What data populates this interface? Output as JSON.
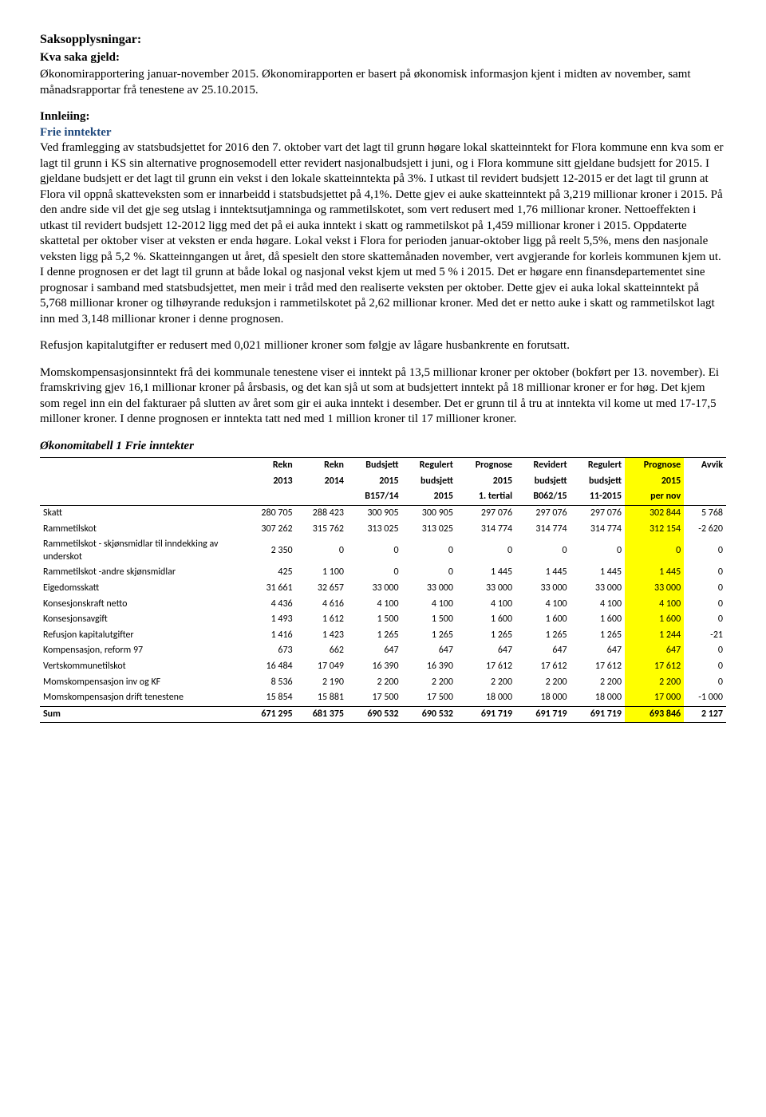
{
  "header": {
    "saksopplysningar": "Saksopplysningar:",
    "kva_saka": "Kva saka gjeld:",
    "intro": "Økonomirapportering januar-november 2015. Økonomirapporten er basert på økonomisk informasjon kjent i midten av november, samt månadsrapportar frå tenestene av 25.10.2015."
  },
  "innleiing": {
    "label": "Innleiing:",
    "frie_label": "Frie inntekter",
    "para1": "Ved framlegging av statsbudsjettet for 2016 den 7. oktober vart det lagt til grunn høgare lokal skatteinntekt for Flora kommune enn kva som er lagt til grunn i KS sin alternative prognosemodell etter revidert nasjonalbudsjett i juni, og i Flora kommune sitt gjeldane budsjett for 2015. I gjeldane budsjett er det lagt til grunn ein vekst i den lokale skatteinntekta på 3%. I utkast til revidert budsjett 12-2015 er det lagt til grunn at Flora vil oppnå skatteveksten som er innarbeidd i statsbudsjettet på 4,1%. Dette gjev ei auke skatteinntekt på 3,219 millionar kroner i 2015. På den andre side vil det gje seg utslag i inntektsutjamninga og rammetilskotet, som vert redusert med 1,76 millionar kroner. Nettoeffekten i utkast til revidert budsjett 12-2012 ligg med det på ei auka inntekt i skatt og rammetilskot på 1,459 millionar kroner i 2015. Oppdaterte skattetal per oktober viser at veksten er enda høgare. Lokal vekst i Flora for perioden januar-oktober ligg på reelt 5,5%, mens den nasjonale veksten ligg på 5,2 %. Skatteinngangen ut året, då spesielt den store skattemånaden november, vert avgjerande for korleis kommunen kjem ut. I denne prognosen er det lagt til grunn at både lokal og nasjonal vekst kjem ut med 5 % i 2015. Det er høgare enn finansdepartementet sine prognosar i samband med statsbudsjettet, men meir i tråd med den realiserte veksten per oktober. Dette gjev ei auka lokal skatteinntekt på 5,768 millionar kroner og tilhøyrande reduksjon i rammetilskotet på 2,62 millionar kroner. Med det er netto auke i skatt og rammetilskot lagt inn med 3,148 millionar kroner i denne prognosen.",
    "para2": "Refusjon kapitalutgifter er redusert med 0,021 millioner kroner som følgje av lågare husbankrente en forutsatt.",
    "para3": "Momskompensasjonsinntekt frå dei kommunale tenestene viser ei inntekt på 13,5 millionar kroner per oktober (bokført per 13. november). Ei framskriving gjev 16,1 millionar kroner på årsbasis, og det kan sjå ut som at budsjettert inntekt på 18 millionar kroner er for høg. Det kjem som regel inn ein del fakturaer på slutten av året som gir ei auka inntekt i desember. Det er grunn til å tru at inntekta vil kome ut med 17-17,5 milloner kroner. I denne prognosen er inntekta tatt ned med 1 million kroner til 17 millioner kroner."
  },
  "table": {
    "title": "Økonomitabell 1 Frie inntekter",
    "head_r1": [
      "",
      "Rekn",
      "Rekn",
      "Budsjett",
      "Regulert",
      "Prognose",
      "Revidert",
      "Regulert",
      "Prognose",
      "Avvik"
    ],
    "head_r2": [
      "",
      "2013",
      "2014",
      "2015",
      "budsjett",
      "2015",
      "budsjett",
      "budsjett",
      "2015",
      ""
    ],
    "head_r3": [
      "",
      "",
      "",
      "B157/14",
      "2015",
      "1. tertial",
      "B062/15",
      "11-2015",
      "per nov",
      ""
    ],
    "rows": [
      {
        "label": "Skatt",
        "v": [
          "280 705",
          "288 423",
          "300 905",
          "300 905",
          "297 076",
          "297 076",
          "297 076",
          "302 844",
          "5 768"
        ]
      },
      {
        "label": "Rammetilskot",
        "v": [
          "307 262",
          "315 762",
          "313 025",
          "313 025",
          "314 774",
          "314 774",
          "314 774",
          "312 154",
          "-2 620"
        ]
      },
      {
        "label": "Rammetilskot - skjønsmidlar til inndekking av underskot",
        "v": [
          "2 350",
          "0",
          "0",
          "0",
          "0",
          "0",
          "0",
          "0",
          "0"
        ]
      },
      {
        "label": "Rammetilskot -andre skjønsmidlar",
        "v": [
          "425",
          "1 100",
          "0",
          "0",
          "1 445",
          "1 445",
          "1 445",
          "1 445",
          "0"
        ]
      },
      {
        "label": "Eigedomsskatt",
        "v": [
          "31 661",
          "32 657",
          "33 000",
          "33 000",
          "33 000",
          "33 000",
          "33 000",
          "33 000",
          "0"
        ]
      },
      {
        "label": "Konsesjonskraft netto",
        "v": [
          "4 436",
          "4 616",
          "4 100",
          "4 100",
          "4 100",
          "4 100",
          "4 100",
          "4 100",
          "0"
        ]
      },
      {
        "label": "Konsesjonsavgift",
        "v": [
          "1 493",
          "1 612",
          "1 500",
          "1 500",
          "1 600",
          "1 600",
          "1 600",
          "1 600",
          "0"
        ]
      },
      {
        "label": "Refusjon kapitalutgifter",
        "v": [
          "1 416",
          "1 423",
          "1 265",
          "1 265",
          "1 265",
          "1 265",
          "1 265",
          "1 244",
          "-21"
        ]
      },
      {
        "label": "Kompensasjon, reform 97",
        "v": [
          "673",
          "662",
          "647",
          "647",
          "647",
          "647",
          "647",
          "647",
          "0"
        ]
      },
      {
        "label": "Vertskommunetilskot",
        "v": [
          "16 484",
          "17 049",
          "16 390",
          "16 390",
          "17 612",
          "17 612",
          "17 612",
          "17 612",
          "0"
        ]
      },
      {
        "label": "Momskompensasjon inv og KF",
        "v": [
          "8 536",
          "2 190",
          "2 200",
          "2 200",
          "2 200",
          "2 200",
          "2 200",
          "2 200",
          "0"
        ]
      },
      {
        "label": "Momskompensasjon drift tenestene",
        "v": [
          "15 854",
          "15 881",
          "17 500",
          "17 500",
          "18 000",
          "18 000",
          "18 000",
          "17 000",
          "-1 000"
        ]
      }
    ],
    "sum": {
      "label": "Sum",
      "v": [
        "671 295",
        "681 375",
        "690 532",
        "690 532",
        "691 719",
        "691 719",
        "691 719",
        "693 846",
        "2 127"
      ]
    }
  }
}
